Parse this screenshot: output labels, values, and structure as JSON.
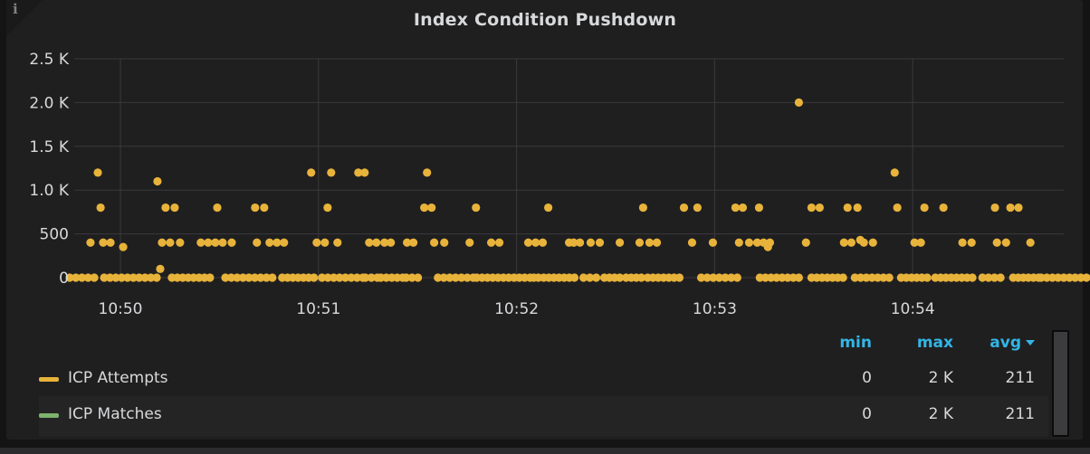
{
  "panel": {
    "info_icon": "i"
  },
  "chart_data": {
    "type": "scatter",
    "title": "Index Condition Pushdown",
    "xlabel": "",
    "ylabel": "",
    "ylim": [
      0,
      2500
    ],
    "grid": true,
    "legend_position": "bottom",
    "x_axis_unit": "time",
    "xticks": [
      {
        "t": 0,
        "label": "10:50"
      },
      {
        "t": 1,
        "label": "10:51"
      },
      {
        "t": 2,
        "label": "10:52"
      },
      {
        "t": 3,
        "label": "10:53"
      },
      {
        "t": 4,
        "label": "10:54"
      }
    ],
    "yticks": [
      {
        "v": 0,
        "label": "0"
      },
      {
        "v": 500,
        "label": "500"
      },
      {
        "v": 1000,
        "label": "1.0 K"
      },
      {
        "v": 1500,
        "label": "1.5 K"
      },
      {
        "v": 2000,
        "label": "2.0 K"
      },
      {
        "v": 2500,
        "label": "2.5 K"
      }
    ],
    "series": [
      {
        "name": "ICP Attempts",
        "color": "#e8b33a",
        "points": [
          [
            -0.114,
            1200
          ],
          [
            0.963,
            1200
          ],
          [
            1.064,
            1200
          ],
          [
            1.201,
            1200
          ],
          [
            1.233,
            1200
          ],
          [
            1.548,
            1200
          ],
          [
            3.909,
            1200
          ],
          [
            0.187,
            1100
          ],
          [
            3.425,
            2000
          ],
          [
            0.201,
            100
          ],
          [
            0.014,
            350
          ],
          [
            3.269,
            350
          ],
          [
            3.735,
            430
          ],
          [
            -0.1,
            800
          ],
          [
            0.228,
            800
          ],
          [
            0.274,
            800
          ],
          [
            0.489,
            800
          ],
          [
            0.68,
            800
          ],
          [
            0.726,
            800
          ],
          [
            1.046,
            800
          ],
          [
            1.534,
            800
          ],
          [
            1.571,
            800
          ],
          [
            1.795,
            800
          ],
          [
            2.16,
            800
          ],
          [
            2.639,
            800
          ],
          [
            2.845,
            800
          ],
          [
            2.913,
            800
          ],
          [
            3.105,
            800
          ],
          [
            3.142,
            800
          ],
          [
            3.224,
            800
          ],
          [
            3.489,
            800
          ],
          [
            3.53,
            800
          ],
          [
            3.671,
            800
          ],
          [
            3.721,
            800
          ],
          [
            3.922,
            800
          ],
          [
            4.059,
            800
          ],
          [
            4.155,
            800
          ],
          [
            4.415,
            800
          ],
          [
            4.493,
            800
          ],
          [
            4.534,
            800
          ],
          [
            -0.151,
            400
          ],
          [
            -0.087,
            400
          ],
          [
            -0.05,
            400
          ],
          [
            0.21,
            400
          ],
          [
            0.251,
            400
          ],
          [
            0.301,
            400
          ],
          [
            0.406,
            400
          ],
          [
            0.443,
            400
          ],
          [
            0.479,
            400
          ],
          [
            0.516,
            400
          ],
          [
            0.562,
            400
          ],
          [
            0.689,
            400
          ],
          [
            0.753,
            400
          ],
          [
            0.79,
            400
          ],
          [
            0.826,
            400
          ],
          [
            0.991,
            400
          ],
          [
            1.032,
            400
          ],
          [
            1.096,
            400
          ],
          [
            1.256,
            400
          ],
          [
            1.292,
            400
          ],
          [
            1.333,
            400
          ],
          [
            1.365,
            400
          ],
          [
            1.447,
            400
          ],
          [
            1.479,
            400
          ],
          [
            1.584,
            400
          ],
          [
            1.635,
            400
          ],
          [
            1.763,
            400
          ],
          [
            1.872,
            400
          ],
          [
            1.913,
            400
          ],
          [
            2.059,
            400
          ],
          [
            2.096,
            400
          ],
          [
            2.132,
            400
          ],
          [
            2.265,
            400
          ],
          [
            2.288,
            400
          ],
          [
            2.32,
            400
          ],
          [
            2.374,
            400
          ],
          [
            2.42,
            400
          ],
          [
            2.521,
            400
          ],
          [
            2.621,
            400
          ],
          [
            2.671,
            400
          ],
          [
            2.708,
            400
          ],
          [
            2.886,
            400
          ],
          [
            2.991,
            400
          ],
          [
            3.123,
            400
          ],
          [
            3.174,
            400
          ],
          [
            3.215,
            400
          ],
          [
            3.247,
            400
          ],
          [
            3.279,
            400
          ],
          [
            3.461,
            400
          ],
          [
            3.653,
            400
          ],
          [
            3.69,
            400
          ],
          [
            3.753,
            400
          ],
          [
            3.799,
            400
          ],
          [
            4.009,
            400
          ],
          [
            4.041,
            400
          ],
          [
            4.251,
            400
          ],
          [
            4.297,
            400
          ],
          [
            4.425,
            400
          ],
          [
            4.471,
            400
          ],
          [
            4.594,
            400
          ]
        ],
        "zero_runs": [
          [
            -0.256,
            -0.132
          ],
          [
            -0.082,
            0.183
          ],
          [
            0.26,
            0.452
          ],
          [
            0.53,
            0.767
          ],
          [
            0.817,
            0.977
          ],
          [
            1.018,
            1.224
          ],
          [
            1.237,
            1.297
          ],
          [
            1.315,
            1.425
          ],
          [
            1.443,
            1.502
          ],
          [
            1.603,
            1.781
          ],
          [
            1.799,
            2.068
          ],
          [
            2.087,
            2.11
          ],
          [
            2.137,
            2.292
          ],
          [
            2.338,
            2.402
          ],
          [
            2.443,
            2.521
          ],
          [
            2.553,
            2.63
          ],
          [
            2.662,
            2.822
          ],
          [
            2.932,
            3.114
          ],
          [
            3.228,
            3.425
          ],
          [
            3.489,
            3.648
          ],
          [
            3.708,
            3.881
          ],
          [
            3.941,
            4.073
          ],
          [
            4.114,
            4.301
          ],
          [
            4.352,
            4.443
          ],
          [
            4.507,
            4.635
          ],
          [
            4.648,
            4.877
          ]
        ]
      },
      {
        "name": "ICP Matches",
        "color": "#7eb26d",
        "points": [],
        "zero_runs": []
      }
    ]
  },
  "legend": {
    "columns": [
      "min",
      "max",
      "avg"
    ],
    "sort_column": "avg",
    "rows": [
      {
        "name": "ICP Attempts",
        "swatch": "#e8b33a",
        "min": "0",
        "max": "2 K",
        "avg": "211"
      },
      {
        "name": "ICP Matches",
        "swatch": "#7eb26d",
        "min": "0",
        "max": "2 K",
        "avg": "211"
      }
    ]
  },
  "colors": {
    "panel_bg": "#1f1f20",
    "page_bg": "#141415",
    "grid": "#3a3a3d",
    "text": "#d8d9da",
    "header_blue": "#33b5e5",
    "yellow": "#e8b33a",
    "green": "#7eb26d"
  }
}
